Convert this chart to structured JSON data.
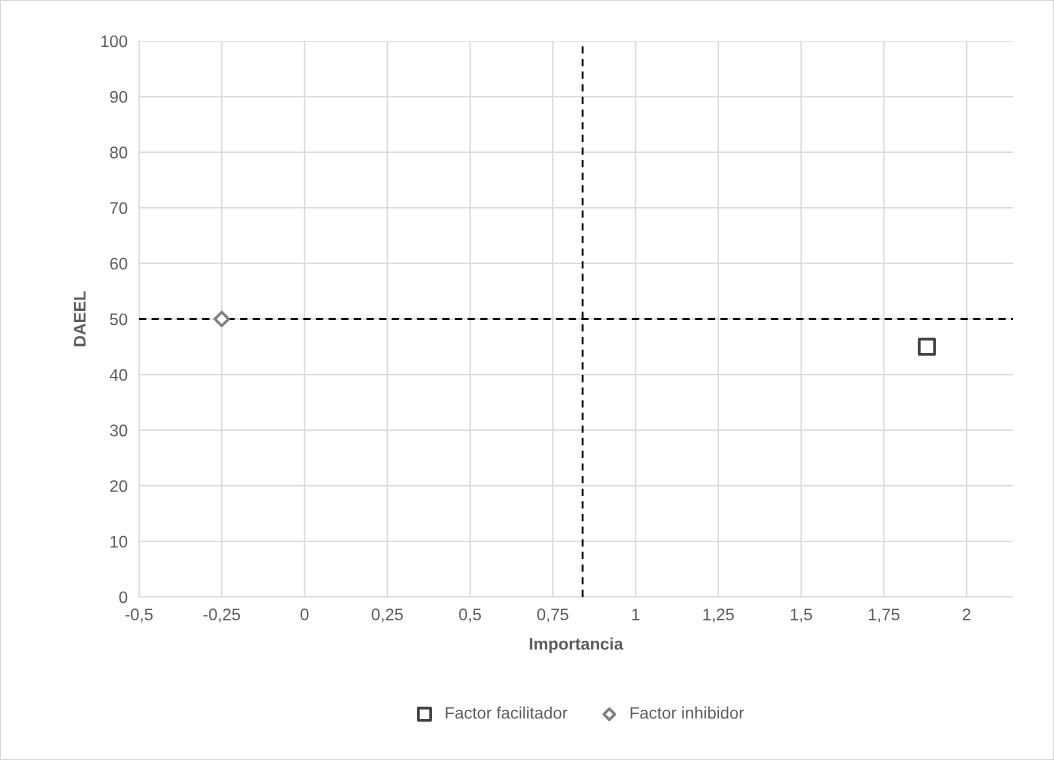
{
  "chart_data": {
    "type": "scatter",
    "xlabel": "Importancia",
    "ylabel": "DAEEL",
    "series": [
      {
        "name": "Factor facilitador",
        "color": "#404040",
        "marker": "square",
        "x": [
          1.88
        ],
        "values": [
          45
        ]
      },
      {
        "name": "Factor inhibidor",
        "color": "#7f7f7f",
        "marker": "diamond",
        "x": [
          -0.25
        ],
        "values": [
          50
        ]
      }
    ],
    "xlim": [
      -0.5,
      2.14
    ],
    "ylim": [
      0,
      100
    ],
    "xticks": [
      {
        "value": -0.5,
        "label": "-0,5"
      },
      {
        "value": -0.25,
        "label": "-0,25"
      },
      0,
      {
        "value": 0.25,
        "label": "0,25"
      },
      {
        "value": 0.5,
        "label": "0,5"
      },
      {
        "value": 0.75,
        "label": "0,75"
      },
      1,
      {
        "value": 1.25,
        "label": "1,25"
      },
      {
        "value": 1.5,
        "label": "1,5"
      },
      {
        "value": 1.75,
        "label": "1,75"
      },
      2
    ],
    "yticks": [
      0,
      10,
      20,
      30,
      40,
      50,
      60,
      70,
      80,
      90,
      100
    ],
    "ref_lines": [
      {
        "axis": "x",
        "value": 0.84,
        "color": "#000000",
        "line_style": "dashed"
      },
      {
        "axis": "y",
        "value": 50,
        "color": "#000000",
        "line_style": "dashed"
      }
    ],
    "grid": true,
    "legend": "bottom"
  }
}
